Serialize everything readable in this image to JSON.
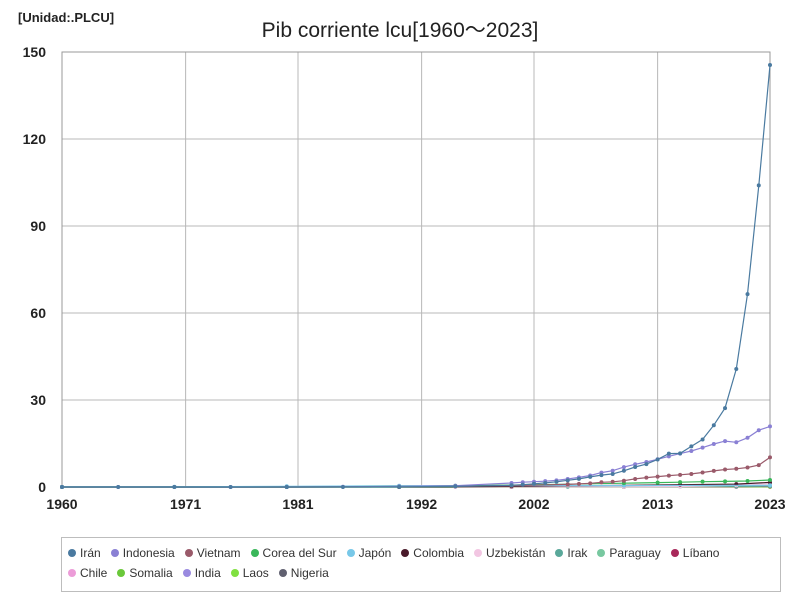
{
  "unit_label": "[Unidad:.PLCU]",
  "chart_data": {
    "type": "line",
    "title": "Pib corriente lcu[1960～2023]",
    "xlabel": "",
    "ylabel": "",
    "xlim": [
      1960,
      2023
    ],
    "ylim": [
      0,
      150
    ],
    "x_ticks": [
      "1960",
      "1971",
      "1981",
      "1992",
      "2002",
      "2013",
      "2023"
    ],
    "y_ticks": [
      "0",
      "30",
      "60",
      "90",
      "120",
      "150"
    ],
    "grid": true,
    "legend_position": "bottom",
    "series": [
      {
        "name": "Irán",
        "color": "#4a7aa0",
        "x": [
          1960,
          1965,
          1970,
          1975,
          1980,
          1985,
          1990,
          1995,
          2000,
          2001,
          2002,
          2003,
          2004,
          2005,
          2006,
          2007,
          2008,
          2009,
          2010,
          2011,
          2012,
          2013,
          2014,
          2015,
          2016,
          2017,
          2018,
          2019,
          2020,
          2021,
          2022,
          2023
        ],
        "values": [
          0.0,
          0.0,
          0.0,
          0.0,
          0.01,
          0.02,
          0.05,
          0.2,
          0.6,
          0.8,
          1.1,
          1.4,
          1.8,
          2.3,
          2.8,
          3.5,
          4.1,
          4.5,
          5.6,
          6.9,
          7.9,
          9.5,
          11.5,
          11.6,
          14.0,
          16.4,
          21.3,
          27.2,
          40.7,
          66.5,
          104.0,
          145.5
        ]
      },
      {
        "name": "Indonesia",
        "color": "#8a80d4",
        "x": [
          1960,
          1965,
          1970,
          1975,
          1980,
          1985,
          1990,
          1995,
          2000,
          2001,
          2002,
          2003,
          2004,
          2005,
          2006,
          2007,
          2008,
          2009,
          2010,
          2011,
          2012,
          2013,
          2014,
          2015,
          2016,
          2017,
          2018,
          2019,
          2020,
          2021,
          2022,
          2023
        ],
        "values": [
          0.0,
          0.0,
          0.0,
          0.01,
          0.06,
          0.1,
          0.2,
          0.45,
          1.39,
          1.65,
          1.82,
          2.01,
          2.3,
          2.77,
          3.34,
          3.95,
          4.95,
          5.61,
          6.86,
          7.83,
          8.62,
          9.55,
          10.57,
          11.53,
          12.4,
          13.59,
          14.84,
          15.83,
          15.43,
          16.98,
          19.59,
          20.89
        ]
      },
      {
        "name": "Vietnam",
        "color": "#9a5a6a",
        "x": [
          1990,
          1995,
          2000,
          2005,
          2006,
          2007,
          2008,
          2009,
          2010,
          2011,
          2012,
          2013,
          2014,
          2015,
          2016,
          2017,
          2018,
          2019,
          2020,
          2021,
          2022,
          2023
        ],
        "values": [
          0.04,
          0.23,
          0.44,
          0.91,
          1.06,
          1.23,
          1.62,
          1.81,
          2.16,
          2.78,
          3.25,
          3.58,
          3.94,
          4.19,
          4.5,
          5.0,
          5.54,
          6.04,
          6.29,
          6.72,
          7.55,
          10.2
        ]
      },
      {
        "name": "Corea del Sur",
        "color": "#3ab75a",
        "x": [
          1960,
          1970,
          1980,
          1990,
          1995,
          2000,
          2005,
          2010,
          2013,
          2015,
          2017,
          2019,
          2021,
          2023
        ],
        "values": [
          0.0,
          0.0,
          0.04,
          0.2,
          0.43,
          0.65,
          0.96,
          1.32,
          1.5,
          1.66,
          1.84,
          1.92,
          2.07,
          2.4
        ]
      },
      {
        "name": "Japón",
        "color": "#78c8e8",
        "x": [
          1960,
          1970,
          1980,
          1990,
          2000,
          2010,
          2023
        ],
        "values": [
          0.02,
          0.08,
          0.25,
          0.45,
          0.53,
          0.5,
          0.59
        ]
      },
      {
        "name": "Colombia",
        "color": "#4a1a2a",
        "x": [
          1960,
          1980,
          1990,
          2000,
          2010,
          2015,
          2020,
          2023
        ],
        "values": [
          0.0,
          0.0,
          0.03,
          0.21,
          0.57,
          0.8,
          1.0,
          1.57
        ]
      },
      {
        "name": "Uzbekistán",
        "color": "#f2c6e2",
        "x": [
          1995,
          2000,
          2010,
          2015,
          2020,
          2023
        ],
        "values": [
          0.0,
          0.0,
          0.06,
          0.17,
          0.6,
          1.06
        ]
      },
      {
        "name": "Irak",
        "color": "#5aa89a",
        "x": [
          1970,
          1980,
          1990,
          2000,
          2005,
          2010,
          2015,
          2020,
          2023
        ],
        "values": [
          0.0,
          0.0,
          0.0,
          0.05,
          0.07,
          0.16,
          0.21,
          0.22,
          0.4
        ]
      },
      {
        "name": "Paraguay",
        "color": "#78c8a0",
        "x": [
          1960,
          1980,
          1990,
          2000,
          2010,
          2015,
          2020,
          2023
        ],
        "values": [
          0.0,
          0.0,
          0.01,
          0.03,
          0.1,
          0.15,
          0.22,
          0.32
        ]
      },
      {
        "name": "Líbano",
        "color": "#a8285a",
        "x": [
          1990,
          2000,
          2010,
          2020,
          2023
        ],
        "values": [
          0.0,
          0.03,
          0.06,
          0.1,
          0.2
        ]
      },
      {
        "name": "Chile",
        "color": "#ec9cd8",
        "x": [
          1960,
          1980,
          2000,
          2010,
          2020,
          2023
        ],
        "values": [
          0.0,
          0.0,
          0.04,
          0.11,
          0.2,
          0.28
        ]
      },
      {
        "name": "Somalia",
        "color": "#6ac83a",
        "x": [
          1960,
          1990,
          2010,
          2023
        ],
        "values": [
          0.0,
          0.0,
          0.01,
          0.05
        ]
      },
      {
        "name": "India",
        "color": "#9a8ae0",
        "x": [
          1960,
          1980,
          2000,
          2010,
          2020,
          2023
        ],
        "values": [
          0.0,
          0.0,
          0.02,
          0.08,
          0.2,
          0.3
        ]
      },
      {
        "name": "Laos",
        "color": "#80e040",
        "x": [
          1990,
          2000,
          2010,
          2020,
          2023
        ],
        "values": [
          0.0,
          0.01,
          0.06,
          0.17,
          0.26
        ]
      },
      {
        "name": "Nigeria",
        "color": "#606070",
        "x": [
          1960,
          1980,
          2000,
          2010,
          2020,
          2023
        ],
        "values": [
          0.0,
          0.0,
          0.01,
          0.05,
          0.15,
          0.23
        ]
      }
    ]
  }
}
